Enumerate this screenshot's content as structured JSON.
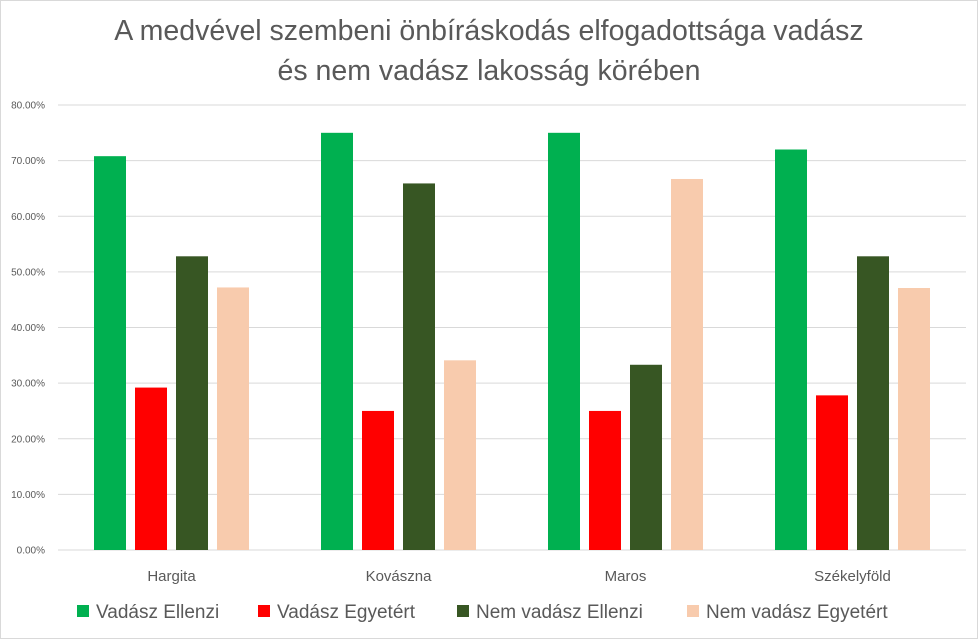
{
  "chart_data": {
    "type": "bar",
    "title_lines": [
      "A medvével szembeni önbíráskodás elfogadottsága vadász",
      "és nem vadász lakosság körében"
    ],
    "categories": [
      "Hargita",
      "Kovászna",
      "Maros",
      "Székelyföld"
    ],
    "series": [
      {
        "name": "Vadász Ellenzi",
        "color": "#00b050",
        "values": [
          0.708,
          0.75,
          0.75,
          0.72
        ]
      },
      {
        "name": "Vadász Egyetért",
        "color": "#ff0000",
        "values": [
          0.292,
          0.25,
          0.25,
          0.278
        ]
      },
      {
        "name": "Nem vadász Ellenzi",
        "color": "#375623",
        "values": [
          0.528,
          0.659,
          0.333,
          0.528
        ]
      },
      {
        "name": "Nem vadász Egyetért",
        "color": "#f8cbad",
        "values": [
          0.472,
          0.341,
          0.667,
          0.471
        ]
      }
    ],
    "ylim": [
      0,
      0.8
    ],
    "yticks": [
      0,
      0.1,
      0.2,
      0.3,
      0.4,
      0.5,
      0.6,
      0.7,
      0.8
    ],
    "ytick_labels": [
      "0.00%",
      "10.00%",
      "20.00%",
      "30.00%",
      "40.00%",
      "50.00%",
      "60.00%",
      "70.00%",
      "80.00%"
    ],
    "grid": true,
    "legend_position": "bottom",
    "gridline_color": "#d9d9d9",
    "axis_text_color": "#595959"
  }
}
